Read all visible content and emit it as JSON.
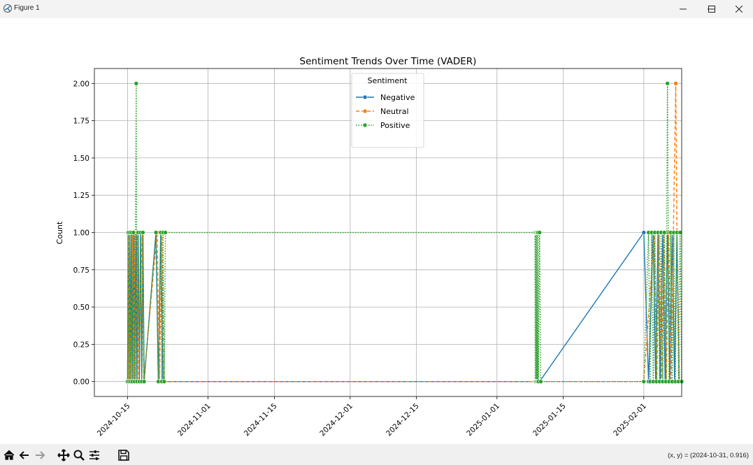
{
  "window": {
    "title": "Figure 1",
    "minimize_icon": "minimize-icon",
    "maximize_icon": "maximize-icon",
    "close_icon": "close-icon"
  },
  "toolbar": {
    "buttons": [
      "home-icon",
      "back-icon",
      "forward-icon",
      "pan-icon",
      "zoom-icon",
      "configure-icon",
      "save-icon"
    ],
    "coords": "(x, y) = (2024-10-31, 0.916)"
  },
  "chart_data": {
    "type": "line",
    "title": "Sentiment Trends Over Time (VADER)",
    "xlabel": "",
    "ylabel": "Count",
    "x_type": "date",
    "xlim": [
      "2024-10-08",
      "2025-02-09"
    ],
    "ylim": [
      -0.1,
      2.1
    ],
    "yticks": [
      0.0,
      0.25,
      0.5,
      0.75,
      1.0,
      1.25,
      1.5,
      1.75,
      2.0
    ],
    "ytick_labels": [
      "0.00",
      "0.25",
      "0.50",
      "0.75",
      "1.00",
      "1.25",
      "1.50",
      "1.75",
      "2.00"
    ],
    "xticks": [
      "2024-10-15",
      "2024-11-01",
      "2024-11-15",
      "2024-12-01",
      "2024-12-15",
      "2025-01-01",
      "2025-01-15",
      "2025-02-01"
    ],
    "grid": true,
    "legend": {
      "title": "Sentiment",
      "placement": "upper center"
    },
    "colors": {
      "Negative": "#1f77b4",
      "Neutral": "#ff7f0e",
      "Positive": "#2ca02c"
    },
    "series": [
      {
        "name": "Negative",
        "linestyle": "solid",
        "color": "#1f77b4",
        "points": [
          [
            "2024-10-15T00:00",
            0
          ],
          [
            "2024-10-15T04:00",
            1
          ],
          [
            "2024-10-15T08:00",
            0
          ],
          [
            "2024-10-15T12:00",
            1
          ],
          [
            "2024-10-15T16:00",
            0
          ],
          [
            "2024-10-15T20:00",
            1
          ],
          [
            "2024-10-16T00:00",
            0
          ],
          [
            "2024-10-16T04:00",
            1
          ],
          [
            "2024-10-16T08:00",
            0
          ],
          [
            "2024-10-16T12:00",
            1
          ],
          [
            "2024-10-16T16:00",
            0
          ],
          [
            "2024-10-16T20:00",
            1
          ],
          [
            "2024-10-17T00:00",
            0
          ],
          [
            "2024-10-17T06:00",
            1
          ],
          [
            "2024-10-17T12:00",
            0
          ],
          [
            "2024-10-17T18:00",
            1
          ],
          [
            "2024-10-18T00:00",
            0
          ],
          [
            "2024-10-18T06:00",
            1
          ],
          [
            "2024-10-18T12:00",
            0
          ],
          [
            "2024-10-21T00:00",
            1
          ],
          [
            "2024-10-21T12:00",
            0
          ],
          [
            "2024-10-22T00:00",
            1
          ],
          [
            "2024-10-22T12:00",
            0
          ],
          [
            "2025-01-09T00:00",
            0
          ],
          [
            "2025-01-10T00:00",
            0
          ],
          [
            "2025-02-01T00:00",
            1
          ],
          [
            "2025-02-02T00:00",
            0
          ],
          [
            "2025-02-03T00:00",
            1
          ],
          [
            "2025-02-03T12:00",
            0
          ],
          [
            "2025-02-04T00:00",
            1
          ],
          [
            "2025-02-04T12:00",
            0
          ],
          [
            "2025-02-05T00:00",
            1
          ],
          [
            "2025-02-05T12:00",
            0
          ],
          [
            "2025-02-06T00:00",
            1
          ],
          [
            "2025-02-06T12:00",
            0
          ],
          [
            "2025-02-07T00:00",
            1
          ],
          [
            "2025-02-07T12:00",
            0
          ],
          [
            "2025-02-08T00:00",
            1
          ],
          [
            "2025-02-08T12:00",
            0
          ]
        ]
      },
      {
        "name": "Neutral",
        "linestyle": "dashed",
        "color": "#ff7f0e",
        "points": [
          [
            "2024-10-15T02:00",
            1
          ],
          [
            "2024-10-15T06:00",
            0
          ],
          [
            "2024-10-15T10:00",
            1
          ],
          [
            "2024-10-15T14:00",
            0
          ],
          [
            "2024-10-16T02:00",
            1
          ],
          [
            "2024-10-16T06:00",
            0
          ],
          [
            "2024-10-16T10:00",
            1
          ],
          [
            "2024-10-16T14:00",
            0
          ],
          [
            "2024-10-17T02:00",
            1
          ],
          [
            "2024-10-17T08:00",
            0
          ],
          [
            "2024-10-18T02:00",
            1
          ],
          [
            "2024-10-18T10:00",
            0
          ],
          [
            "2024-10-21T06:00",
            1
          ],
          [
            "2024-10-21T18:00",
            0
          ],
          [
            "2024-10-22T06:00",
            1
          ],
          [
            "2024-10-22T18:00",
            0
          ],
          [
            "2025-01-09T00:00",
            0
          ],
          [
            "2025-01-10T00:00",
            0
          ],
          [
            "2025-02-01T00:00",
            0
          ],
          [
            "2025-02-03T06:00",
            1
          ],
          [
            "2025-02-03T18:00",
            0
          ],
          [
            "2025-02-04T06:00",
            1
          ],
          [
            "2025-02-04T18:00",
            0
          ],
          [
            "2025-02-05T06:00",
            1
          ],
          [
            "2025-02-05T18:00",
            0
          ],
          [
            "2025-02-06T06:00",
            1
          ],
          [
            "2025-02-06T18:00",
            0
          ],
          [
            "2025-02-07T06:00",
            1
          ],
          [
            "2025-02-07T18:00",
            2
          ],
          [
            "2025-02-08T00:00",
            1
          ],
          [
            "2025-02-08T12:00",
            0
          ]
        ]
      },
      {
        "name": "Positive",
        "linestyle": "dotted",
        "color": "#2ca02c",
        "points": [
          [
            "2024-10-15T00:00",
            0
          ],
          [
            "2024-10-15T04:00",
            1
          ],
          [
            "2024-10-15T08:00",
            0
          ],
          [
            "2024-10-15T12:00",
            1
          ],
          [
            "2024-10-15T16:00",
            0
          ],
          [
            "2024-10-15T20:00",
            1
          ],
          [
            "2024-10-16T00:00",
            0
          ],
          [
            "2024-10-16T06:00",
            1
          ],
          [
            "2024-10-16T12:00",
            0
          ],
          [
            "2024-10-16T20:00",
            2
          ],
          [
            "2024-10-17T00:00",
            0
          ],
          [
            "2024-10-17T06:00",
            1
          ],
          [
            "2024-10-17T12:00",
            0
          ],
          [
            "2024-10-17T18:00",
            1
          ],
          [
            "2024-10-18T00:00",
            0
          ],
          [
            "2024-10-18T06:00",
            1
          ],
          [
            "2024-10-18T12:00",
            0
          ],
          [
            "2024-10-21T00:00",
            1
          ],
          [
            "2024-10-21T12:00",
            0
          ],
          [
            "2024-10-22T00:00",
            1
          ],
          [
            "2024-10-22T06:00",
            0
          ],
          [
            "2024-10-22T12:00",
            1
          ],
          [
            "2024-10-22T18:00",
            0
          ],
          [
            "2024-10-23T00:00",
            1
          ],
          [
            "2025-01-09T00:00",
            1
          ],
          [
            "2025-01-09T02:00",
            0
          ],
          [
            "2025-01-09T04:00",
            1
          ],
          [
            "2025-01-09T06:00",
            0
          ],
          [
            "2025-01-09T08:00",
            1
          ],
          [
            "2025-01-09T10:00",
            0
          ],
          [
            "2025-01-09T12:00",
            1
          ],
          [
            "2025-01-09T14:00",
            0
          ],
          [
            "2025-01-09T16:00",
            1
          ],
          [
            "2025-01-09T18:00",
            0
          ],
          [
            "2025-01-10T00:00",
            1
          ],
          [
            "2025-01-10T06:00",
            0
          ],
          [
            "2025-02-01T00:00",
            0
          ],
          [
            "2025-02-02T00:00",
            1
          ],
          [
            "2025-02-02T08:00",
            0
          ],
          [
            "2025-02-02T16:00",
            1
          ],
          [
            "2025-02-03T00:00",
            0
          ],
          [
            "2025-02-03T08:00",
            1
          ],
          [
            "2025-02-03T16:00",
            0
          ],
          [
            "2025-02-04T00:00",
            1
          ],
          [
            "2025-02-04T08:00",
            0
          ],
          [
            "2025-02-04T16:00",
            1
          ],
          [
            "2025-02-05T00:00",
            0
          ],
          [
            "2025-02-05T08:00",
            1
          ],
          [
            "2025-02-05T16:00",
            0
          ],
          [
            "2025-02-06T00:00",
            2
          ],
          [
            "2025-02-06T08:00",
            0
          ],
          [
            "2025-02-06T16:00",
            1
          ],
          [
            "2025-02-07T00:00",
            0
          ],
          [
            "2025-02-07T08:00",
            1
          ],
          [
            "2025-02-07T16:00",
            0
          ],
          [
            "2025-02-08T00:00",
            1
          ],
          [
            "2025-02-08T08:00",
            0
          ],
          [
            "2025-02-08T16:00",
            1
          ],
          [
            "2025-02-09T00:00",
            0
          ]
        ]
      }
    ]
  }
}
